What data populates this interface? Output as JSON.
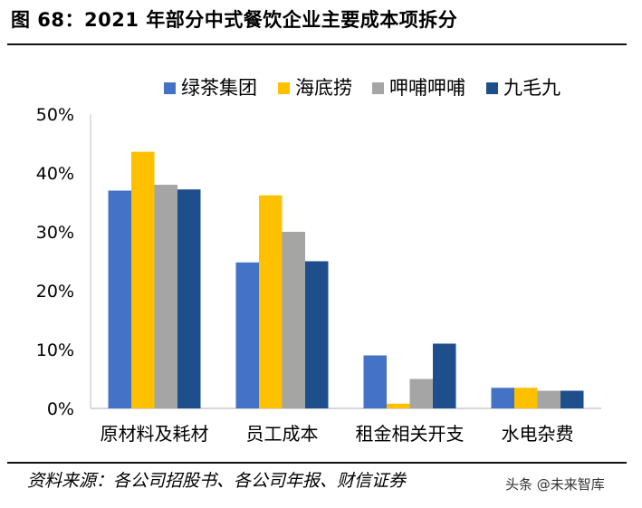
{
  "figure": {
    "title": "图 68：2021 年部分中式餐饮企业主要成本项拆分",
    "source": "资料来源：各公司招股书、各公司年报、财信证券",
    "watermark": "头条 @未来智库"
  },
  "chart_data": {
    "type": "bar",
    "categories": [
      "原材料及耗材",
      "员工成本",
      "租金相关开支",
      "水电杂费"
    ],
    "series": [
      {
        "name": "绿茶集团",
        "color": "#4472C4",
        "values": [
          37.0,
          24.8,
          9.0,
          3.5
        ]
      },
      {
        "name": "海底捞",
        "color": "#FFC000",
        "values": [
          43.6,
          36.2,
          0.8,
          3.5
        ]
      },
      {
        "name": "呷哺呷哺",
        "color": "#A5A5A5",
        "values": [
          38.0,
          30.0,
          5.0,
          3.0
        ]
      },
      {
        "name": "九毛九",
        "color": "#1F4E8C",
        "values": [
          37.2,
          25.0,
          11.0,
          3.0
        ]
      }
    ],
    "ylim": [
      0,
      50
    ],
    "yticks": [
      "0%",
      "10%",
      "20%",
      "30%",
      "40%",
      "50%"
    ],
    "grid": false,
    "legend": "top"
  }
}
